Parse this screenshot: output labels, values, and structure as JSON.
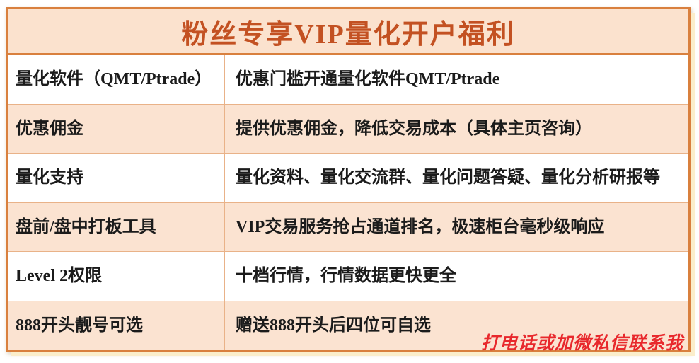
{
  "header": {
    "title": "粉丝专享VIP量化开户福利"
  },
  "table": {
    "rows": [
      {
        "feature": "量化软件（QMT/Ptrade）",
        "benefit": "优惠门槛开通量化软件QMT/Ptrade"
      },
      {
        "feature": "优惠佣金",
        "benefit": "提供优惠佣金，降低交易成本（具体主页咨询）"
      },
      {
        "feature": "量化支持",
        "benefit": "量化资料、量化交流群、量化问题答疑、量化分析研报等"
      },
      {
        "feature": "盘前/盘中打板工具",
        "benefit": "VIP交易服务抢占通道排名，极速柜台毫秒级响应"
      },
      {
        "feature": "Level 2权限",
        "benefit": "十档行情，行情数据更快更全"
      },
      {
        "feature": "888开头靓号可选",
        "benefit": "赠送888开头后四位可自选"
      }
    ]
  },
  "footer": {
    "contact_note": "打电话或加微私信联系我"
  },
  "colors": {
    "accent_border": "#d9803e",
    "divider": "#e9b288",
    "peach_bg": "#fbe3d1",
    "title_text": "#c35122",
    "body_text": "#1b1b1b",
    "contact_red": "#e8282c"
  }
}
